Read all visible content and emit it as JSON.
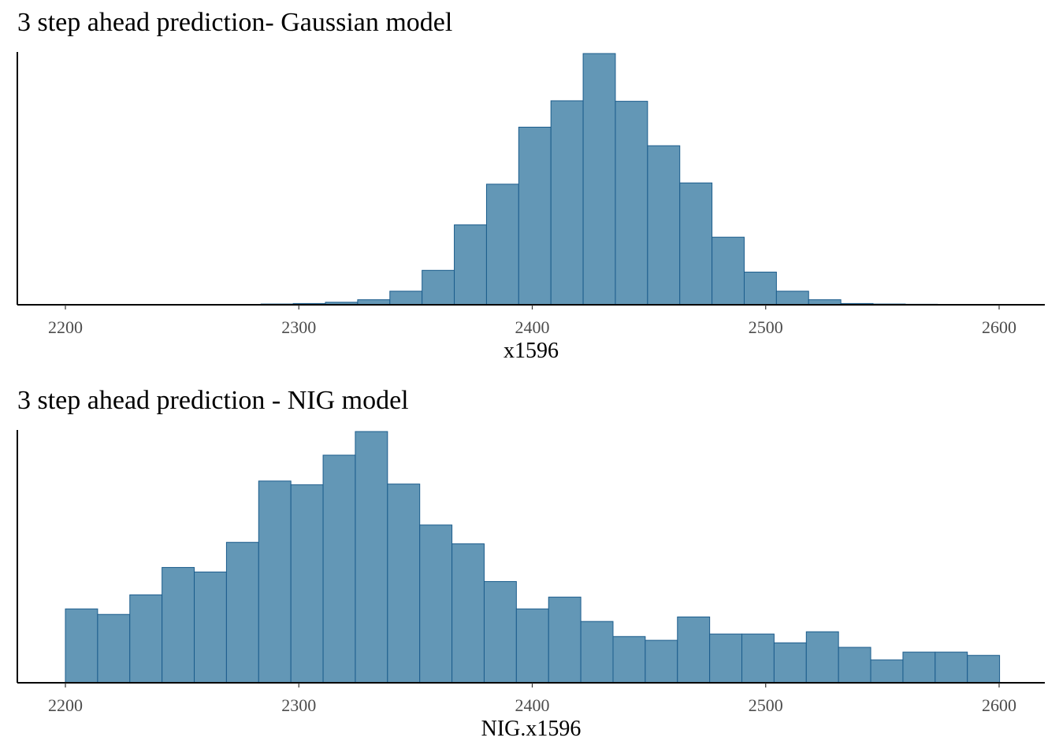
{
  "chart_data": [
    {
      "type": "bar",
      "title": "3 step ahead prediction- Gaussian model",
      "xlabel": "x1596",
      "ylabel": "",
      "x_ticks": [
        "2200",
        "2300",
        "2400",
        "2500",
        "2600"
      ],
      "xlim": [
        2180,
        2618
      ],
      "ylim": [
        0,
        100
      ],
      "bin_width": 13.8,
      "bins_start": [
        2283.8,
        2297.6,
        2311.4,
        2325.2,
        2339.0,
        2352.8,
        2366.6,
        2380.4,
        2394.2,
        2408.0,
        2421.8,
        2435.6,
        2449.4,
        2463.2,
        2477.0,
        2490.8,
        2504.6,
        2518.4,
        2532.2,
        2546.0,
        2559.8
      ],
      "values": [
        0.3,
        0.5,
        1.0,
        2.0,
        5.4,
        13.7,
        31.8,
        48.0,
        70.7,
        81.2,
        100.0,
        81.0,
        63.3,
        48.5,
        26.9,
        13.0,
        5.4,
        2.0,
        0.5,
        0.3,
        0.2
      ],
      "grid": false,
      "legend": "none"
    },
    {
      "type": "bar",
      "title": "3 step ahead prediction - NIG model",
      "xlabel": "NIG.x1596",
      "ylabel": "",
      "x_ticks": [
        "2200",
        "2300",
        "2400",
        "2500",
        "2600"
      ],
      "xlim": [
        2180,
        2618
      ],
      "ylim": [
        0,
        100
      ],
      "bin_width": 13.8,
      "bins_start": [
        2200.0,
        2213.8,
        2227.6,
        2241.4,
        2255.2,
        2269.0,
        2282.8,
        2296.6,
        2310.4,
        2324.2,
        2338.0,
        2351.8,
        2365.6,
        2379.4,
        2393.2,
        2407.0,
        2420.8,
        2434.6,
        2448.4,
        2462.2,
        2476.0,
        2489.8,
        2503.6,
        2517.4,
        2531.2,
        2545.0,
        2558.8,
        2572.6,
        2586.4
      ],
      "values": [
        29.4,
        27.2,
        35.0,
        45.9,
        44.1,
        55.9,
        80.3,
        78.8,
        90.6,
        100.0,
        79.1,
        62.8,
        55.3,
        40.3,
        29.4,
        34.1,
        24.4,
        18.4,
        16.9,
        26.2,
        19.4,
        19.4,
        15.9,
        20.3,
        14.1,
        9.1,
        12.2,
        12.2,
        10.9
      ],
      "grid": false,
      "legend": "none"
    }
  ]
}
